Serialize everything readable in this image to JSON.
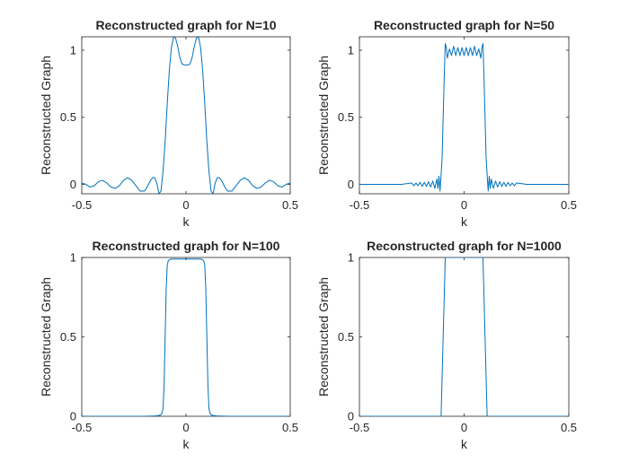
{
  "figure": {
    "background": "#ffffff",
    "line_color": "#0072bd",
    "axis_color": "#262626"
  },
  "chart_data": [
    {
      "type": "line",
      "title": "Reconstructed graph for N=10",
      "xlabel": "k",
      "ylabel": "Reconstructed Graph",
      "xlim": [
        -0.5,
        0.5
      ],
      "ylim": [
        -0.07,
        1.1
      ],
      "xticks": [
        -0.5,
        0,
        0.5
      ],
      "xtick_labels": [
        "-0.5",
        "0",
        "0.5"
      ],
      "yticks": [
        0,
        0.5,
        1
      ],
      "ytick_labels": [
        "0",
        "0.5",
        "1"
      ],
      "series": [
        {
          "x": [
            -0.5,
            -0.48,
            -0.46,
            -0.44,
            -0.42,
            -0.4,
            -0.38,
            -0.36,
            -0.34,
            -0.32,
            -0.3,
            -0.28,
            -0.26,
            -0.24,
            -0.22,
            -0.2,
            -0.19,
            -0.18,
            -0.17,
            -0.16,
            -0.15,
            -0.14,
            -0.13,
            -0.12,
            -0.11,
            -0.1,
            -0.09,
            -0.08,
            -0.07,
            -0.06,
            -0.05,
            -0.04,
            -0.03,
            -0.02,
            -0.01,
            0,
            0.01,
            0.02,
            0.03,
            0.04,
            0.05,
            0.06,
            0.07,
            0.08,
            0.09,
            0.1,
            0.11,
            0.12,
            0.13,
            0.14,
            0.15,
            0.16,
            0.17,
            0.18,
            0.19,
            0.2,
            0.22,
            0.24,
            0.26,
            0.28,
            0.3,
            0.32,
            0.34,
            0.36,
            0.38,
            0.4,
            0.42,
            0.44,
            0.46,
            0.48,
            0.5
          ],
          "y": [
            0.01,
            0.0,
            -0.02,
            -0.01,
            0.02,
            0.03,
            0.01,
            -0.02,
            -0.03,
            -0.01,
            0.03,
            0.05,
            0.03,
            -0.01,
            -0.05,
            -0.05,
            -0.03,
            0.0,
            0.03,
            0.05,
            0.05,
            0.01,
            -0.07,
            -0.05,
            0.1,
            0.32,
            0.6,
            0.85,
            1.02,
            1.1,
            1.09,
            1.03,
            0.95,
            0.9,
            0.89,
            0.89,
            0.89,
            0.9,
            0.95,
            1.03,
            1.09,
            1.1,
            1.02,
            0.85,
            0.6,
            0.32,
            0.1,
            -0.05,
            -0.07,
            0.01,
            0.05,
            0.05,
            0.03,
            0.0,
            -0.03,
            -0.05,
            -0.05,
            -0.01,
            0.03,
            0.05,
            0.03,
            -0.01,
            -0.03,
            -0.02,
            0.01,
            0.03,
            0.02,
            -0.01,
            -0.02,
            0.0,
            0.01
          ]
        }
      ]
    },
    {
      "type": "line",
      "title": "Reconstructed graph for N=50",
      "xlabel": "k",
      "ylabel": "Reconstructed Graph",
      "xlim": [
        -0.5,
        0.5
      ],
      "ylim": [
        -0.07,
        1.1
      ],
      "xticks": [
        -0.5,
        0,
        0.5
      ],
      "xtick_labels": [
        "-0.5",
        "0",
        "0.5"
      ],
      "yticks": [
        0,
        0.5,
        1
      ],
      "ytick_labels": [
        "0",
        "0.5",
        "1"
      ],
      "series": [
        {
          "x": [
            -0.5,
            -0.3,
            -0.25,
            -0.24,
            -0.23,
            -0.22,
            -0.21,
            -0.2,
            -0.19,
            -0.18,
            -0.17,
            -0.16,
            -0.15,
            -0.14,
            -0.13,
            -0.125,
            -0.12,
            -0.115,
            -0.11,
            -0.105,
            -0.1,
            -0.095,
            -0.09,
            -0.085,
            -0.08,
            -0.07,
            -0.06,
            -0.05,
            -0.04,
            -0.03,
            -0.02,
            -0.01,
            0,
            0.01,
            0.02,
            0.03,
            0.04,
            0.05,
            0.06,
            0.07,
            0.08,
            0.085,
            0.09,
            0.095,
            0.1,
            0.105,
            0.11,
            0.115,
            0.12,
            0.125,
            0.13,
            0.14,
            0.15,
            0.16,
            0.17,
            0.18,
            0.19,
            0.2,
            0.21,
            0.22,
            0.23,
            0.24,
            0.25,
            0.3,
            0.5
          ],
          "y": [
            0.0,
            0.0,
            0.01,
            -0.01,
            0.01,
            -0.01,
            0.015,
            -0.015,
            0.015,
            -0.015,
            0.02,
            -0.02,
            0.025,
            -0.03,
            0.04,
            -0.03,
            0.06,
            -0.05,
            0.07,
            0.2,
            0.5,
            0.8,
            1.05,
            1.02,
            0.94,
            1.01,
            0.96,
            1.03,
            0.96,
            1.02,
            0.96,
            1.02,
            0.96,
            1.02,
            0.96,
            1.02,
            0.96,
            1.03,
            0.96,
            1.01,
            0.94,
            1.02,
            1.05,
            0.8,
            0.5,
            0.2,
            0.07,
            -0.05,
            0.06,
            -0.03,
            0.04,
            -0.03,
            0.025,
            -0.02,
            0.02,
            -0.015,
            0.015,
            -0.015,
            0.015,
            -0.01,
            0.01,
            -0.01,
            0.01,
            0.0,
            0.0
          ]
        }
      ]
    },
    {
      "type": "line",
      "title": "Reconstructed graph for N=100",
      "xlabel": "k",
      "ylabel": "Reconstructed Graph",
      "xlim": [
        -0.5,
        0.5
      ],
      "ylim": [
        0,
        1
      ],
      "xticks": [
        -0.5,
        0,
        0.5
      ],
      "xtick_labels": [
        "-0.5",
        "0",
        "0.5"
      ],
      "yticks": [
        0,
        0.5,
        1
      ],
      "ytick_labels": [
        "0",
        "0.5",
        "1"
      ],
      "series": [
        {
          "x": [
            -0.5,
            -0.2,
            -0.15,
            -0.13,
            -0.12,
            -0.115,
            -0.11,
            -0.105,
            -0.1,
            -0.095,
            -0.09,
            -0.085,
            -0.08,
            -0.07,
            -0.05,
            0,
            0.05,
            0.07,
            0.08,
            0.085,
            0.09,
            0.095,
            0.1,
            0.105,
            0.11,
            0.115,
            0.12,
            0.13,
            0.15,
            0.2,
            0.5
          ],
          "y": [
            0.0,
            0.0,
            0.002,
            0.005,
            0.01,
            0.02,
            0.05,
            0.2,
            0.5,
            0.8,
            0.95,
            0.98,
            0.985,
            0.99,
            0.99,
            0.99,
            0.99,
            0.99,
            0.985,
            0.98,
            0.95,
            0.8,
            0.5,
            0.2,
            0.05,
            0.02,
            0.01,
            0.005,
            0.002,
            0.0,
            0.0
          ]
        }
      ]
    },
    {
      "type": "line",
      "title": "Reconstructed graph for N=1000",
      "xlabel": "k",
      "ylabel": "Reconstructed Graph",
      "xlim": [
        -0.5,
        0.5
      ],
      "ylim": [
        0,
        1
      ],
      "xticks": [
        -0.5,
        0,
        0.5
      ],
      "xtick_labels": [
        "-0.5",
        "0",
        "0.5"
      ],
      "yticks": [
        0,
        0.5,
        1
      ],
      "ytick_labels": [
        "0",
        "0.5",
        "1"
      ],
      "series": [
        {
          "x": [
            -0.5,
            -0.11,
            -0.09,
            0.09,
            0.11,
            0.5
          ],
          "y": [
            0.0,
            0.0,
            1.0,
            1.0,
            0.0,
            0.0
          ]
        }
      ]
    }
  ]
}
